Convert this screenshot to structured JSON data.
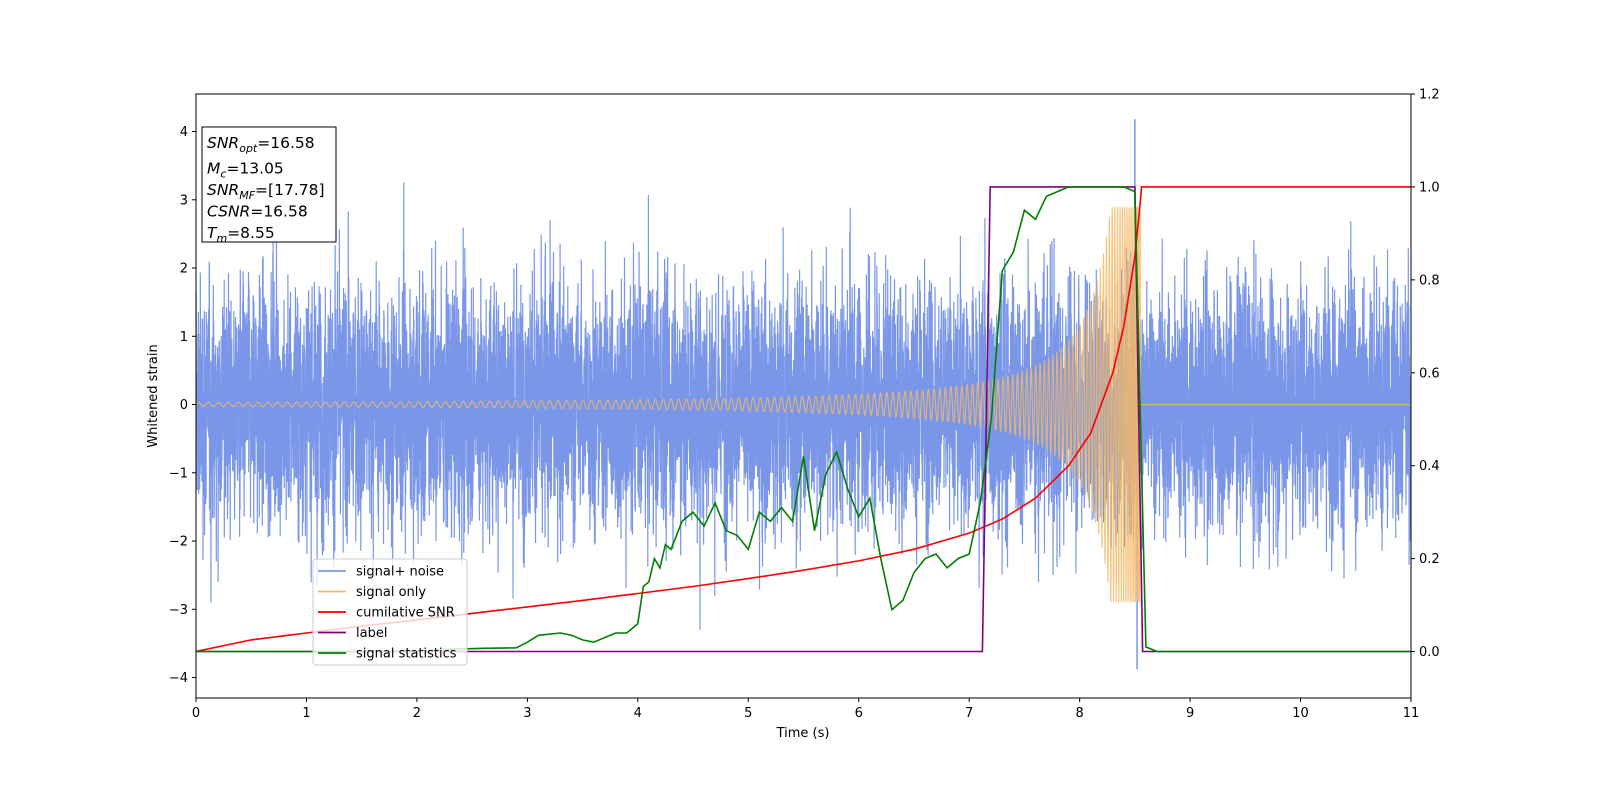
{
  "chart_data": {
    "type": "line",
    "xlabel": "Time (s)",
    "ylabel": "Whitened strain",
    "xlim": [
      0,
      11
    ],
    "ylim": [
      -4.3,
      4.55
    ],
    "y2lim": [
      -0.1,
      1.2
    ],
    "x_ticks": [
      "0",
      "1",
      "2",
      "3",
      "4",
      "5",
      "6",
      "7",
      "8",
      "9",
      "10",
      "11"
    ],
    "y_ticks": [
      "4",
      "3",
      "2",
      "1",
      "0",
      "−1",
      "−2",
      "−3",
      "−4"
    ],
    "y2_ticks": [
      "1.2",
      "1.0",
      "0.8",
      "0.6",
      "0.4",
      "0.2",
      "0.0"
    ],
    "grid": false,
    "legend_position": "lower-left",
    "annotation": [
      {
        "main": "SNR",
        "sub": "opt",
        "rest": "=16.58"
      },
      {
        "main": "M",
        "sub": "c",
        "rest": "=13.05"
      },
      {
        "main": "SNR",
        "sub": "MF",
        "rest": "=[17.78]"
      },
      {
        "main": "CSNR",
        "sub": "",
        "rest": "=16.58"
      },
      {
        "main": "T",
        "sub": "m",
        "rest": "=8.55"
      }
    ],
    "series": [
      {
        "name": "signal+ noise",
        "color": "#7a96e8",
        "axis": "left",
        "description_values": {
          "noise_std": 0.9,
          "peak_max": 4.18,
          "peak_min": -3.88
        }
      },
      {
        "name": "signal only",
        "color": "#f5b865",
        "axis": "left",
        "chirp": {
          "start_time": 0,
          "merger_time": 8.55,
          "amplitude_start": 0.03,
          "amplitude_peak": 2.9
        }
      },
      {
        "name": "cumilative SNR",
        "color": "#ff0000",
        "axis": "right",
        "x": [
          0,
          0.5,
          1,
          1.5,
          2,
          2.5,
          3,
          3.5,
          4,
          4.5,
          5,
          5.5,
          6,
          6.5,
          7,
          7.3,
          7.6,
          7.9,
          8.1,
          8.3,
          8.4,
          8.5,
          8.55,
          8.56,
          8.6,
          11
        ],
        "y": [
          0.0,
          0.025,
          0.04,
          0.055,
          0.068,
          0.082,
          0.096,
          0.11,
          0.125,
          0.14,
          0.157,
          0.175,
          0.195,
          0.22,
          0.255,
          0.285,
          0.33,
          0.4,
          0.47,
          0.6,
          0.7,
          0.85,
          0.97,
          1.0,
          1.0,
          1.0
        ]
      },
      {
        "name": "label",
        "color": "#800080",
        "axis": "right",
        "x": [
          0,
          7.12,
          7.19,
          8.5,
          8.57,
          11
        ],
        "y": [
          0,
          0,
          1,
          1,
          0,
          0
        ]
      },
      {
        "name": "signal statistics",
        "color": "#008000",
        "axis": "right",
        "x": [
          0,
          0.5,
          1,
          1.5,
          2,
          2.3,
          2.6,
          2.9,
          3.0,
          3.1,
          3.3,
          3.4,
          3.5,
          3.6,
          3.8,
          3.9,
          4.0,
          4.05,
          4.1,
          4.15,
          4.2,
          4.25,
          4.3,
          4.35,
          4.4,
          4.5,
          4.6,
          4.7,
          4.8,
          4.9,
          5.0,
          5.1,
          5.2,
          5.3,
          5.4,
          5.5,
          5.6,
          5.7,
          5.8,
          5.9,
          6.0,
          6.1,
          6.2,
          6.3,
          6.4,
          6.5,
          6.6,
          6.7,
          6.8,
          6.9,
          7.0,
          7.1,
          7.2,
          7.3,
          7.4,
          7.5,
          7.6,
          7.7,
          7.8,
          7.9,
          8.0,
          8.2,
          8.4,
          8.5,
          8.55,
          8.6,
          8.7,
          11
        ],
        "y": [
          0.0,
          0.0,
          0.0,
          0.0,
          0.0,
          0.005,
          0.007,
          0.008,
          0.02,
          0.035,
          0.04,
          0.035,
          0.025,
          0.02,
          0.04,
          0.04,
          0.06,
          0.14,
          0.15,
          0.2,
          0.18,
          0.23,
          0.22,
          0.25,
          0.28,
          0.3,
          0.27,
          0.32,
          0.26,
          0.25,
          0.22,
          0.3,
          0.28,
          0.31,
          0.28,
          0.42,
          0.26,
          0.38,
          0.43,
          0.35,
          0.29,
          0.33,
          0.2,
          0.09,
          0.11,
          0.17,
          0.2,
          0.21,
          0.18,
          0.2,
          0.21,
          0.32,
          0.5,
          0.82,
          0.86,
          0.95,
          0.93,
          0.98,
          0.99,
          1.0,
          1.0,
          1.0,
          1.0,
          0.99,
          0.5,
          0.01,
          0.0,
          0.0
        ]
      }
    ]
  }
}
